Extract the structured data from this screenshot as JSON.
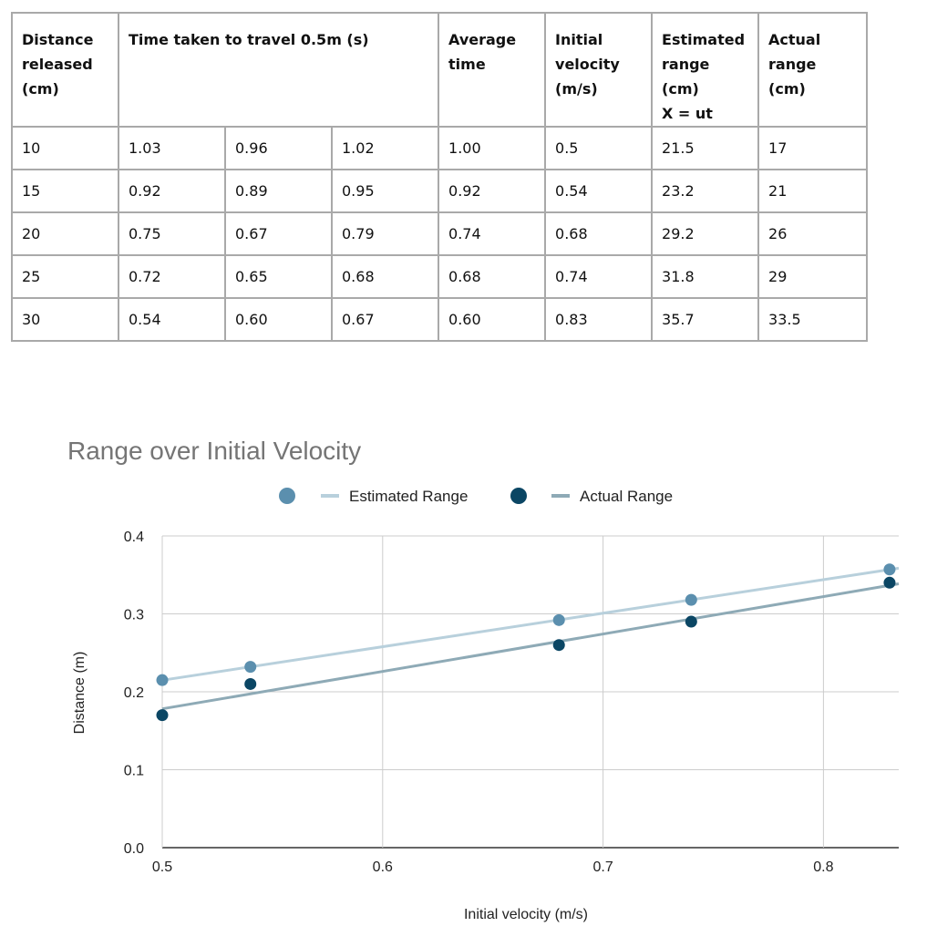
{
  "table": {
    "headers": {
      "distance": [
        "Distance",
        "released",
        "(cm)"
      ],
      "time": [
        "Time taken to travel 0.5m (s)"
      ],
      "average": [
        "Average",
        "time"
      ],
      "initial_velocity": [
        "Initial",
        "velocity",
        "(m/s)"
      ],
      "estimated": [
        "Estimated",
        "range",
        "(cm)",
        "X = ut"
      ],
      "actual": [
        "Actual",
        "range",
        "(cm)"
      ]
    },
    "rows": [
      [
        "10",
        "1.03",
        "0.96",
        "1.02",
        "1.00",
        "0.5",
        "21.5",
        "17"
      ],
      [
        "15",
        "0.92",
        "0.89",
        "0.95",
        "0.92",
        "0.54",
        "23.2",
        "21"
      ],
      [
        "20",
        "0.75",
        "0.67",
        "0.79",
        "0.74",
        "0.68",
        "29.2",
        "26"
      ],
      [
        "25",
        "0.72",
        "0.65",
        "0.68",
        "0.68",
        "0.74",
        "31.8",
        "29"
      ],
      [
        "30",
        "0.54",
        "0.60",
        "0.67",
        "0.60",
        "0.83",
        "35.7",
        "33.5"
      ]
    ]
  },
  "chart_data": {
    "type": "scatter",
    "title": "Range over Initial Velocity",
    "xlabel": "Initial velocity (m/s)",
    "ylabel": "Distance (m)",
    "xlim": [
      0.5,
      0.83
    ],
    "ylim": [
      0,
      0.4
    ],
    "xticks": [
      "0.5",
      "0.6",
      "0.7",
      "0.8"
    ],
    "yticks": [
      "0.0",
      "0.1",
      "0.2",
      "0.3",
      "0.4"
    ],
    "grid": true,
    "legend_position": "top",
    "series": [
      {
        "name": "Estimated Range",
        "trendline_label": "Estimated Range",
        "color": "#5b8fae",
        "trend_color": "#b8d0dc",
        "x": [
          0.5,
          0.54,
          0.68,
          0.74,
          0.83
        ],
        "y": [
          0.215,
          0.232,
          0.292,
          0.318,
          0.357
        ]
      },
      {
        "name": "Actual Range",
        "trendline_label": "Actual Range",
        "color": "#0b4664",
        "trend_color": "#8eaab6",
        "x": [
          0.5,
          0.54,
          0.68,
          0.74,
          0.83
        ],
        "y": [
          0.17,
          0.21,
          0.26,
          0.29,
          0.34
        ]
      }
    ]
  }
}
